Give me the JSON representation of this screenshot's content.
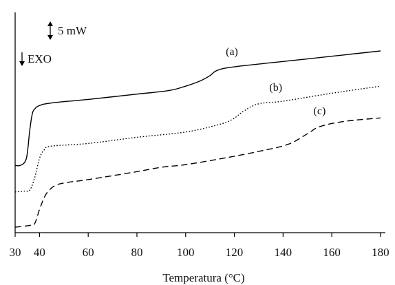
{
  "chart_data": {
    "type": "line",
    "title": "",
    "xlabel": "Temperatura (°C)",
    "ylabel": "",
    "xlim": [
      30,
      182
    ],
    "ylim": [
      0,
      100
    ],
    "x_ticks": [
      30,
      40,
      60,
      80,
      100,
      120,
      140,
      160,
      180
    ],
    "grid": false,
    "legend": "none",
    "scale_bar_label": "5 mW",
    "direction_label": "EXO",
    "series": [
      {
        "name": "(a)",
        "style": "solid",
        "color": "#000000",
        "points": [
          [
            30,
            35
          ],
          [
            32,
            35
          ],
          [
            34,
            37
          ],
          [
            35,
            42
          ],
          [
            36,
            55
          ],
          [
            37,
            64
          ],
          [
            38,
            67
          ],
          [
            40,
            69
          ],
          [
            45,
            70.5
          ],
          [
            60,
            72.5
          ],
          [
            80,
            75.5
          ],
          [
            93,
            77.5
          ],
          [
            100,
            80
          ],
          [
            106,
            83
          ],
          [
            110,
            86
          ],
          [
            113,
            89
          ],
          [
            120,
            91
          ],
          [
            140,
            94
          ],
          [
            160,
            97
          ],
          [
            180,
            100
          ]
        ]
      },
      {
        "name": "(b)",
        "style": "dotted",
        "color": "#000000",
        "points": [
          [
            30,
            20
          ],
          [
            34,
            20.5
          ],
          [
            36,
            21
          ],
          [
            38,
            28
          ],
          [
            40,
            39
          ],
          [
            42,
            44
          ],
          [
            45,
            46
          ],
          [
            60,
            47.5
          ],
          [
            80,
            51
          ],
          [
            100,
            54
          ],
          [
            113,
            58
          ],
          [
            119,
            61
          ],
          [
            124,
            66
          ],
          [
            130,
            70
          ],
          [
            140,
            71.5
          ],
          [
            160,
            76
          ],
          [
            180,
            80
          ]
        ]
      },
      {
        "name": "(c)",
        "style": "dashed",
        "color": "#000000",
        "points": [
          [
            30,
            0
          ],
          [
            36,
            1
          ],
          [
            38,
            2
          ],
          [
            40,
            10
          ],
          [
            42,
            17
          ],
          [
            44,
            21
          ],
          [
            47,
            24
          ],
          [
            52,
            25.5
          ],
          [
            60,
            27
          ],
          [
            80,
            31.5
          ],
          [
            90,
            34
          ],
          [
            100,
            35.5
          ],
          [
            115,
            39
          ],
          [
            130,
            43
          ],
          [
            142,
            47
          ],
          [
            150,
            53
          ],
          [
            155,
            57
          ],
          [
            165,
            60
          ],
          [
            180,
            62
          ]
        ]
      }
    ]
  }
}
